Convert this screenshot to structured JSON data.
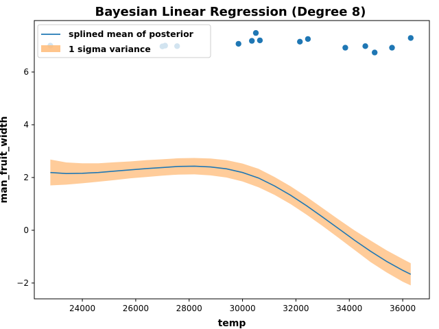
{
  "chart_data": {
    "type": "line",
    "title": "Bayesian Linear Regression (Degree 8)",
    "xlabel": "temp",
    "ylabel": "man_fruit_width",
    "xlim": [
      22200,
      37000
    ],
    "ylim": [
      -2.6,
      7.95
    ],
    "xticks": [
      24000,
      26000,
      28000,
      30000,
      32000,
      34000,
      36000
    ],
    "yticks": [
      -2,
      0,
      2,
      4,
      6
    ],
    "grid": false,
    "legend_position": "top-left",
    "series": [
      {
        "name": "splined mean of posterior",
        "kind": "line",
        "color": "#1f77b4",
        "x": [
          22800,
          23400,
          24000,
          24600,
          25200,
          25800,
          26400,
          27000,
          27600,
          28200,
          28800,
          29400,
          30000,
          30600,
          31200,
          31800,
          32400,
          33000,
          33600,
          34200,
          34800,
          35400,
          36000,
          36300
        ],
        "y": [
          2.19,
          2.15,
          2.16,
          2.19,
          2.24,
          2.29,
          2.34,
          2.38,
          2.42,
          2.43,
          2.4,
          2.33,
          2.19,
          1.98,
          1.68,
          1.33,
          0.93,
          0.5,
          0.06,
          -0.38,
          -0.8,
          -1.18,
          -1.52,
          -1.67
        ]
      },
      {
        "name": "1 sigma variance",
        "kind": "band",
        "color": "#ffbb78",
        "x": [
          22800,
          23400,
          24000,
          24600,
          25200,
          25800,
          26400,
          27000,
          27600,
          28200,
          28800,
          29400,
          30000,
          30600,
          31200,
          31800,
          32400,
          33000,
          33600,
          34200,
          34800,
          35400,
          36000,
          36300
        ],
        "lower": [
          1.7,
          1.73,
          1.78,
          1.84,
          1.9,
          1.97,
          2.02,
          2.07,
          2.11,
          2.12,
          2.08,
          2.0,
          1.85,
          1.63,
          1.34,
          0.99,
          0.59,
          0.16,
          -0.29,
          -0.75,
          -1.21,
          -1.6,
          -1.95,
          -2.09
        ],
        "upper": [
          2.68,
          2.57,
          2.54,
          2.54,
          2.58,
          2.61,
          2.66,
          2.69,
          2.73,
          2.74,
          2.72,
          2.66,
          2.53,
          2.33,
          2.02,
          1.67,
          1.27,
          0.84,
          0.41,
          -0.01,
          -0.39,
          -0.76,
          -1.09,
          -1.25
        ]
      },
      {
        "name": "",
        "kind": "scatter",
        "color": "#1f77b4",
        "x": [
          22800,
          27000,
          27100,
          27550,
          29850,
          30350,
          30500,
          30650,
          32150,
          32450,
          33850,
          34600,
          34950,
          35600,
          36300
        ],
        "y": [
          7.0,
          6.97,
          7.0,
          6.98,
          7.07,
          7.18,
          7.48,
          7.2,
          7.15,
          7.25,
          6.92,
          6.98,
          6.74,
          6.92,
          7.29
        ]
      }
    ]
  }
}
